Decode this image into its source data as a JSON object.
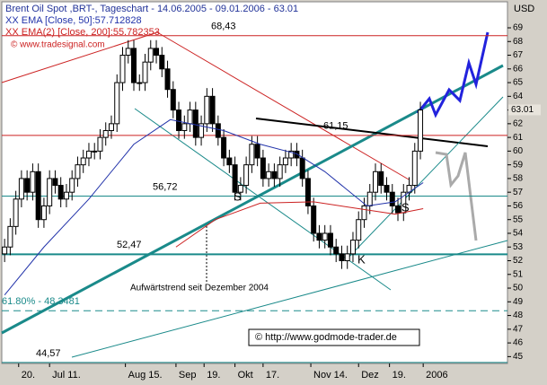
{
  "chart_data": {
    "type": "candlestick",
    "title": "Brent Oil Spot ,BRT-, Tageschart - 14.06.2005 - 09.01.2006 - 63.01",
    "legend": [
      "XX EMA [Close, 50]:57.712828",
      "XX EMA(2) [Close, 200]:55.782353"
    ],
    "source": "© www.tradesignal.com",
    "credit": "© http://www.godmode-trader.de",
    "y_unit": "USD",
    "last_price": 63.01,
    "annotations": [
      "S",
      "S",
      "K",
      "Aufwärtstrend seit Dezember 2004"
    ],
    "xlim": [
      0,
      180
    ],
    "ylim": [
      44.5,
      70.9
    ],
    "xticks": [
      {
        "value": 6,
        "label": "20."
      },
      {
        "value": 17,
        "label": "Jul 11."
      },
      {
        "value": 44,
        "label": "Aug 15."
      },
      {
        "value": 62,
        "label": "Sep"
      },
      {
        "value": 72,
        "label": "19."
      },
      {
        "value": 83,
        "label": "Okt"
      },
      {
        "value": 93,
        "label": "17."
      },
      {
        "value": 110,
        "label": "Nov 14."
      },
      {
        "value": 127,
        "label": "Dez"
      },
      {
        "value": 138,
        "label": "19."
      },
      {
        "value": 150,
        "label": "2006"
      }
    ],
    "yticks": [
      45,
      46,
      47,
      48,
      49,
      50,
      51,
      52,
      53,
      54,
      55,
      56,
      57,
      58,
      59,
      60,
      61,
      62,
      63,
      64,
      65,
      66,
      67,
      68,
      69
    ],
    "levels": [
      {
        "value": 68.43,
        "label": "68,43",
        "color": "#cc2222"
      },
      {
        "value": 61.15,
        "label": "61,15",
        "color": "#cc2222"
      },
      {
        "value": 56.72,
        "label": "56,72",
        "color": "#1a8a8a"
      },
      {
        "value": 52.47,
        "label": "52,47",
        "color": "#1a8a8a"
      },
      {
        "value": 48.3481,
        "label": "61.80% - 48.3481",
        "color": "#1a8a8a"
      },
      {
        "value": 44.57,
        "label": "44,57",
        "color": "#1a8a8a"
      }
    ],
    "x": [
      1,
      3,
      5,
      7,
      9,
      11,
      13,
      15,
      17,
      19,
      21,
      23,
      25,
      27,
      29,
      31,
      33,
      35,
      37,
      39,
      41,
      43,
      45,
      47,
      49,
      51,
      53,
      55,
      57,
      59,
      61,
      63,
      65,
      67,
      69,
      71,
      73,
      75,
      77,
      79,
      81,
      83,
      85,
      87,
      89,
      91,
      93,
      95,
      97,
      99,
      101,
      103,
      105,
      107,
      109,
      111,
      113,
      115,
      117,
      119,
      121,
      123,
      125,
      127,
      129,
      131,
      133,
      135,
      137,
      139,
      141,
      143,
      145,
      147,
      149
    ],
    "open": [
      52.5,
      53,
      54.5,
      56.5,
      58,
      57,
      58.5,
      55,
      56,
      58,
      57.5,
      56.5,
      57,
      58,
      59,
      59.5,
      60,
      60,
      61,
      61.5,
      62,
      65,
      67,
      67.5,
      65,
      65,
      66.5,
      67.5,
      67,
      66,
      64.5,
      63,
      61.5,
      62,
      63,
      61,
      62,
      64,
      62,
      61,
      59.5,
      59,
      57,
      57.5,
      59,
      60.5,
      59.5,
      58,
      58.5,
      58,
      59,
      59.5,
      60,
      59.5,
      58,
      56,
      54,
      53.5,
      54,
      53,
      52.5,
      52,
      52.5,
      53.5,
      55,
      56,
      57,
      58.5,
      57.5,
      57,
      56,
      55.5,
      57,
      57.5,
      60
    ],
    "high": [
      53.6,
      55.1,
      57.1,
      58.6,
      58.6,
      59.1,
      59.1,
      56.6,
      58.6,
      58.6,
      58.1,
      57.6,
      58.6,
      59.6,
      60.1,
      60.6,
      60.6,
      61.6,
      62.1,
      62.6,
      65.6,
      67.6,
      68.1,
      68.1,
      65.6,
      67.1,
      68.1,
      68.1,
      67.6,
      66.6,
      65.1,
      63.6,
      62.6,
      63.6,
      63.6,
      62.6,
      64.6,
      64.6,
      62.6,
      61.6,
      60.1,
      59.6,
      58.1,
      59.6,
      61.1,
      61.1,
      60.1,
      59.1,
      59.1,
      59.6,
      60.1,
      60.6,
      60.6,
      60.1,
      58.6,
      56.6,
      54.6,
      54.6,
      54.6,
      53.6,
      53.1,
      53.1,
      54.1,
      55.6,
      56.6,
      57.6,
      59.1,
      59.1,
      58.1,
      57.6,
      56.6,
      57.6,
      58.1,
      60.6,
      63.6
    ],
    "low": [
      51.9,
      52.4,
      53.9,
      55.9,
      56.4,
      56.4,
      54.4,
      54.4,
      55.4,
      56.9,
      55.9,
      55.9,
      56.4,
      57.4,
      58.4,
      58.9,
      59.4,
      59.4,
      60.4,
      60.9,
      61.4,
      64.4,
      66.4,
      64.4,
      64.4,
      64.4,
      65.9,
      66.4,
      65.4,
      63.9,
      62.4,
      60.9,
      60.9,
      61.4,
      60.4,
      60.4,
      61.4,
      61.4,
      60.4,
      58.9,
      58.4,
      56.4,
      56.4,
      56.9,
      58.4,
      58.9,
      57.4,
      57.4,
      57.4,
      57.4,
      58.4,
      58.9,
      58.9,
      57.4,
      55.4,
      53.4,
      52.9,
      52.9,
      52.4,
      51.9,
      51.4,
      51.4,
      51.9,
      52.9,
      54.4,
      55.4,
      56.4,
      56.9,
      56.4,
      55.4,
      54.9,
      54.9,
      56.4,
      56.9,
      59.4
    ],
    "close": [
      53,
      54.5,
      56.5,
      58,
      57,
      58.5,
      55,
      56,
      58,
      57.5,
      56.5,
      57,
      58,
      59,
      59.5,
      60,
      60,
      61,
      61.5,
      62,
      65,
      67,
      67.5,
      65,
      65,
      66.5,
      67.5,
      67,
      66,
      64.5,
      63,
      61.5,
      62,
      63,
      61,
      62,
      64,
      62,
      61,
      59.5,
      59,
      57,
      57.5,
      59,
      60.5,
      59.5,
      58,
      58.5,
      58,
      59,
      59.5,
      60,
      59.5,
      58,
      56,
      54,
      53.5,
      54,
      53,
      52.5,
      52,
      52.5,
      53.5,
      55,
      56,
      57,
      58.5,
      57.5,
      57,
      56,
      55.5,
      57,
      57.5,
      60,
      63
    ],
    "series": [
      {
        "name": "EMA [Close, 50]",
        "color": "#2233aa",
        "x": [
          1,
          15,
          31,
          47,
          60,
          79,
          92,
          105,
          115,
          121,
          130,
          140,
          150
        ],
        "values": [
          49.5,
          53,
          56.5,
          60.5,
          62.3,
          61.5,
          60.5,
          59.8,
          58.5,
          57.5,
          56,
          56.3,
          57.7
        ]
      },
      {
        "name": "EMA(2) [Close, 200]",
        "color": "#cc2222",
        "x": [
          62,
          76,
          92,
          111,
          127,
          140,
          150
        ],
        "values": [
          53,
          55,
          56.2,
          56.3,
          55.8,
          55.4,
          55.8
        ]
      }
    ]
  }
}
